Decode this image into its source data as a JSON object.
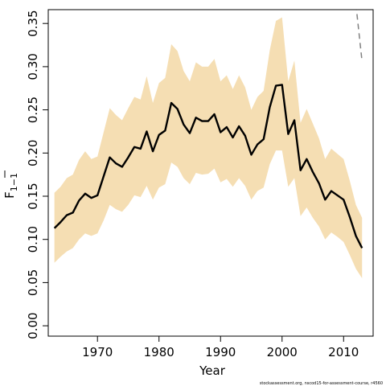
{
  "chart_data": {
    "type": "line",
    "xlabel": "Year",
    "ylabel": "F",
    "ylabel_subscript": "1−1",
    "xlim": [
      1962,
      2014.8
    ],
    "ylim": [
      -0.012,
      0.366
    ],
    "x_ticks": [
      1970,
      1980,
      1990,
      2000,
      2010
    ],
    "x_tick_labels": [
      "1970",
      "1980",
      "1990",
      "2000",
      "2010"
    ],
    "y_ticks": [
      0.0,
      0.05,
      0.1,
      0.15,
      0.2,
      0.25,
      0.3,
      0.35
    ],
    "y_tick_labels": [
      "0.00",
      "0.05",
      "0.10",
      "0.15",
      "0.20",
      "0.25",
      "0.30",
      "0.35"
    ],
    "grid": false,
    "legend": "none",
    "colors": {
      "band": "#f5deb3",
      "line": "#000000",
      "dashed": "#808080"
    },
    "series": [
      {
        "style": "solid",
        "x": [
          1963,
          1964,
          1965,
          1966,
          1967,
          1968,
          1969,
          1970,
          1971,
          1972,
          1973,
          1974,
          1975,
          1976,
          1977,
          1978,
          1979,
          1980,
          1981,
          1982,
          1983,
          1984,
          1985,
          1986,
          1987,
          1988,
          1989,
          1990,
          1991,
          1992,
          1993,
          1994,
          1995,
          1996,
          1997,
          1998,
          1999,
          2000,
          2001,
          2002,
          2003,
          2004,
          2005,
          2006,
          2007,
          2008,
          2009,
          2010,
          2011,
          2012,
          2013
        ],
        "y": [
          0.113,
          0.12,
          0.128,
          0.131,
          0.145,
          0.153,
          0.148,
          0.151,
          0.173,
          0.195,
          0.188,
          0.184,
          0.195,
          0.207,
          0.205,
          0.225,
          0.202,
          0.221,
          0.226,
          0.258,
          0.251,
          0.233,
          0.223,
          0.241,
          0.237,
          0.237,
          0.245,
          0.224,
          0.23,
          0.218,
          0.231,
          0.22,
          0.198,
          0.21,
          0.216,
          0.253,
          0.278,
          0.279,
          0.222,
          0.238,
          0.18,
          0.193,
          0.178,
          0.165,
          0.146,
          0.156,
          0.151,
          0.146,
          0.126,
          0.104,
          0.09
        ],
        "lower": [
          0.073,
          0.08,
          0.086,
          0.09,
          0.1,
          0.107,
          0.104,
          0.107,
          0.122,
          0.14,
          0.135,
          0.132,
          0.14,
          0.151,
          0.149,
          0.162,
          0.146,
          0.16,
          0.164,
          0.189,
          0.184,
          0.171,
          0.164,
          0.177,
          0.175,
          0.176,
          0.182,
          0.166,
          0.17,
          0.161,
          0.171,
          0.162,
          0.146,
          0.156,
          0.16,
          0.187,
          0.203,
          0.203,
          0.161,
          0.171,
          0.127,
          0.137,
          0.125,
          0.115,
          0.1,
          0.108,
          0.103,
          0.097,
          0.082,
          0.066,
          0.055
        ],
        "upper": [
          0.154,
          0.161,
          0.171,
          0.175,
          0.192,
          0.202,
          0.193,
          0.196,
          0.224,
          0.252,
          0.244,
          0.238,
          0.252,
          0.265,
          0.262,
          0.289,
          0.258,
          0.281,
          0.287,
          0.326,
          0.318,
          0.295,
          0.283,
          0.305,
          0.3,
          0.3,
          0.309,
          0.283,
          0.29,
          0.274,
          0.29,
          0.276,
          0.25,
          0.265,
          0.272,
          0.319,
          0.353,
          0.357,
          0.283,
          0.307,
          0.235,
          0.251,
          0.234,
          0.217,
          0.193,
          0.205,
          0.199,
          0.193,
          0.168,
          0.14,
          0.125
        ]
      },
      {
        "style": "dashed",
        "x": [
          2012,
          2013
        ],
        "y": [
          0.372,
          0.306
        ]
      }
    ]
  },
  "footnote": "stockassessment.org, nscod15-for-assessment-course, r4560"
}
